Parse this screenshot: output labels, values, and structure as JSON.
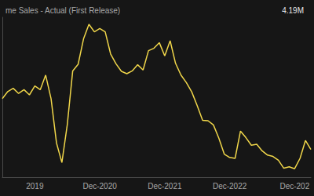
{
  "chart_data": {
    "type": "line",
    "title": "me Sales - Actual (First Release)",
    "subtitle": "4.19M",
    "categories": [
      null,
      null,
      null,
      null,
      null,
      null,
      "2019",
      null,
      null,
      null,
      null,
      null,
      null,
      null,
      null,
      null,
      null,
      null,
      "Dec-2020",
      null,
      null,
      null,
      null,
      null,
      null,
      null,
      null,
      null,
      null,
      null,
      "Dec-2021",
      null,
      null,
      null,
      null,
      null,
      null,
      null,
      null,
      null,
      null,
      null,
      "Dec-2022",
      null,
      null,
      null,
      null,
      null,
      null,
      null,
      null,
      null,
      null,
      null,
      "Dec-202",
      null,
      null,
      null
    ],
    "values": [
      5.27,
      5.42,
      5.49,
      5.38,
      5.46,
      5.35,
      5.54,
      5.46,
      5.77,
      5.27,
      4.33,
      3.91,
      4.72,
      5.86,
      6.0,
      6.54,
      6.85,
      6.69,
      6.76,
      6.69,
      6.22,
      6.01,
      5.85,
      5.8,
      5.86,
      5.99,
      5.88,
      6.29,
      6.34,
      6.46,
      6.18,
      6.5,
      6.02,
      5.77,
      5.61,
      5.41,
      5.12,
      4.81,
      4.8,
      4.71,
      4.43,
      4.09,
      4.02,
      4.0,
      4.58,
      4.44,
      4.28,
      4.3,
      4.16,
      4.07,
      4.04,
      3.96,
      3.79,
      3.82,
      3.78,
      4.0,
      4.38,
      4.19
    ],
    "color": "#f0d64a",
    "ylim": [
      3.6,
      7.0
    ],
    "grid": false,
    "tick_labels": "x"
  }
}
